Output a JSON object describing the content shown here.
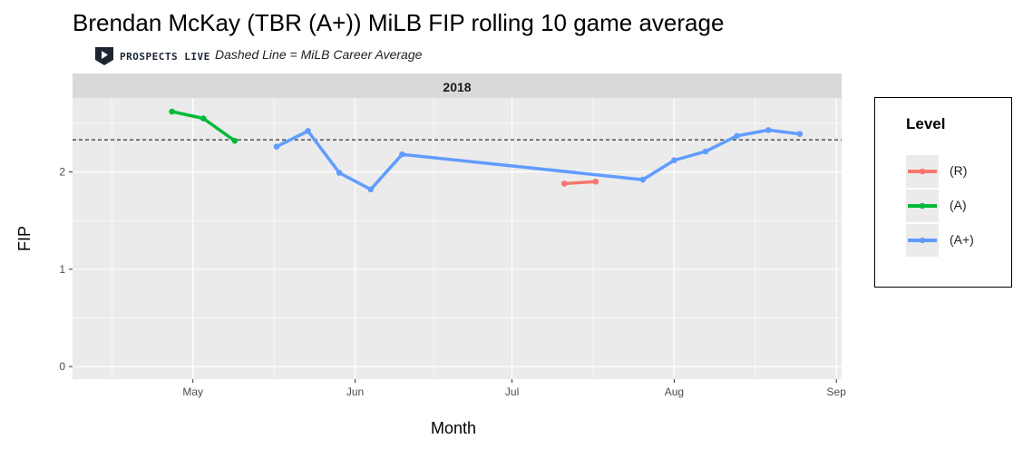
{
  "header": {
    "title": "Brendan McKay (TBR (A+)) MiLB FIP rolling 10 game average",
    "logo_text": "PROSPECTS LIVE",
    "subtitle": "Dashed Line = MiLB Career Average"
  },
  "colors": {
    "panel_bg": "#ebebeb",
    "strip_bg": "#d9d9d9",
    "grid": "#ffffff",
    "R": "#f8766d",
    "A": "#00ba38",
    "A+": "#619cff"
  },
  "legend": {
    "title": "Level",
    "items": [
      {
        "label": "(R)",
        "color": "#f8766d"
      },
      {
        "label": "(A)",
        "color": "#00ba38"
      },
      {
        "label": "(A+)",
        "color": "#619cff"
      }
    ]
  },
  "chart_data": {
    "type": "line",
    "facet_label": "2018",
    "xlabel": "Month",
    "ylabel": "FIP",
    "x_ticks": [
      {
        "date": "2018-05-01",
        "label": "May"
      },
      {
        "date": "2018-06-01",
        "label": "Jun"
      },
      {
        "date": "2018-07-01",
        "label": "Jul"
      },
      {
        "date": "2018-08-01",
        "label": "Aug"
      },
      {
        "date": "2018-09-01",
        "label": "Sep"
      }
    ],
    "xlim": [
      "2018-04-08",
      "2018-09-02"
    ],
    "y_ticks": [
      0,
      1,
      2
    ],
    "ylim": [
      -0.13,
      2.76
    ],
    "career_average": 2.33,
    "grid": true,
    "legend_position": "right",
    "series": [
      {
        "name": "(R)",
        "color": "#f8766d",
        "points": [
          {
            "x": "2018-07-11",
            "y": 1.88
          },
          {
            "x": "2018-07-17",
            "y": 1.9
          }
        ]
      },
      {
        "name": "(A)",
        "color": "#00ba38",
        "points": [
          {
            "x": "2018-04-27",
            "y": 2.62
          },
          {
            "x": "2018-05-03",
            "y": 2.55
          },
          {
            "x": "2018-05-09",
            "y": 2.32
          }
        ]
      },
      {
        "name": "(A+)",
        "color": "#619cff",
        "points": [
          {
            "x": "2018-05-17",
            "y": 2.26
          },
          {
            "x": "2018-05-23",
            "y": 2.42
          },
          {
            "x": "2018-05-29",
            "y": 1.99
          },
          {
            "x": "2018-06-04",
            "y": 1.82
          },
          {
            "x": "2018-06-10",
            "y": 2.18
          },
          {
            "x": "2018-07-26",
            "y": 1.92
          },
          {
            "x": "2018-08-01",
            "y": 2.12
          },
          {
            "x": "2018-08-07",
            "y": 2.21
          },
          {
            "x": "2018-08-13",
            "y": 2.37
          },
          {
            "x": "2018-08-19",
            "y": 2.43
          },
          {
            "x": "2018-08-25",
            "y": 2.39
          }
        ]
      }
    ]
  }
}
